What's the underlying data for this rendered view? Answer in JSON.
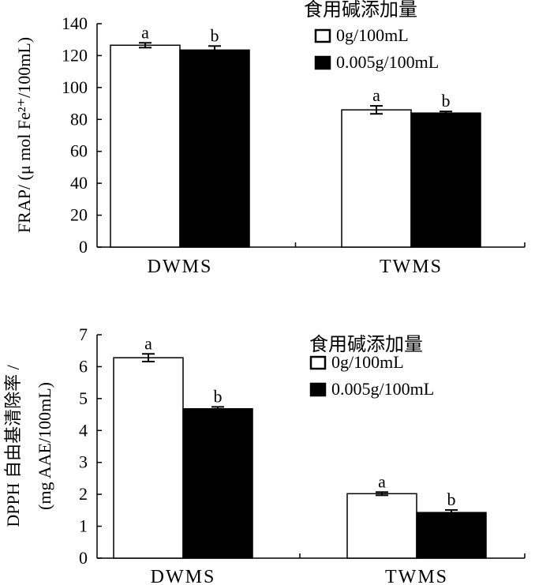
{
  "chart_data": [
    {
      "type": "bar",
      "categories": [
        "DWMS",
        "TWMS"
      ],
      "series": [
        {
          "name": "0g/100mL",
          "values": [
            126.5,
            86
          ],
          "errors": [
            1.5,
            2.5
          ],
          "letters": [
            "a",
            "a"
          ],
          "fill": "#ffffff"
        },
        {
          "name": "0.005g/100mL",
          "values": [
            123.5,
            84
          ],
          "errors": [
            2.5,
            1.0
          ],
          "letters": [
            "b",
            "b"
          ],
          "fill": "#000000"
        }
      ],
      "ylabel": "FRAP/ (μ mol Fe²⁺/100mL)",
      "xlabel": "",
      "ylim": [
        0,
        140
      ],
      "yticks": [
        0,
        20,
        40,
        60,
        80,
        100,
        120,
        140
      ],
      "legend_title": "食用碱添加量",
      "legend_position": "top-right"
    },
    {
      "type": "bar",
      "categories": [
        "DWMS",
        "TWMS"
      ],
      "series": [
        {
          "name": "0g/100mL",
          "values": [
            6.28,
            2.02
          ],
          "errors": [
            0.12,
            0.05
          ],
          "letters": [
            "a",
            "a"
          ],
          "fill": "#ffffff"
        },
        {
          "name": "0.005g/100mL",
          "values": [
            4.68,
            1.43
          ],
          "errors": [
            0.06,
            0.08
          ],
          "letters": [
            "b",
            "b"
          ],
          "fill": "#000000"
        }
      ],
      "ylabel": "DPPH 自由基清除率 /",
      "ylabel2": "(mg AAE/100mL)",
      "xlabel": "",
      "ylim": [
        0,
        7
      ],
      "yticks": [
        0,
        1,
        2,
        3,
        4,
        5,
        6,
        7
      ],
      "legend_title": "食用碱添加量",
      "legend_position": "top-right"
    }
  ]
}
